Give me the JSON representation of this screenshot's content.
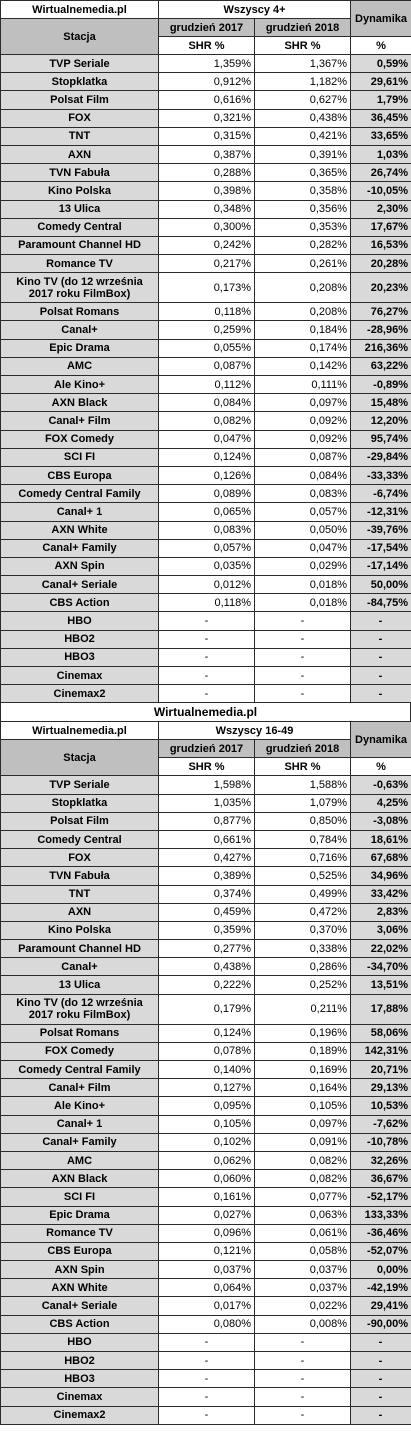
{
  "sections": [
    {
      "brand": "Wirtualnemedia.pl",
      "group": "Wszyscy 4+",
      "dynamics_label": "Dynamika",
      "station_label": "Stacja",
      "year1": "grudzień 2017",
      "year2": "grudzień 2018",
      "shr1": "SHR %",
      "shr2": "SHR %",
      "pct": "%",
      "rows": [
        {
          "name": "TVP Seriale",
          "v1": "1,359%",
          "v2": "1,367%",
          "dyn": "0,59%"
        },
        {
          "name": "Stopklatka",
          "v1": "0,912%",
          "v2": "1,182%",
          "dyn": "29,61%"
        },
        {
          "name": "Polsat Film",
          "v1": "0,616%",
          "v2": "0,627%",
          "dyn": "1,79%"
        },
        {
          "name": "FOX",
          "v1": "0,321%",
          "v2": "0,438%",
          "dyn": "36,45%"
        },
        {
          "name": "TNT",
          "v1": "0,315%",
          "v2": "0,421%",
          "dyn": "33,65%"
        },
        {
          "name": "AXN",
          "v1": "0,387%",
          "v2": "0,391%",
          "dyn": "1,03%"
        },
        {
          "name": "TVN Fabuła",
          "v1": "0,288%",
          "v2": "0,365%",
          "dyn": "26,74%"
        },
        {
          "name": "Kino Polska",
          "v1": "0,398%",
          "v2": "0,358%",
          "dyn": "-10,05%"
        },
        {
          "name": "13 Ulica",
          "v1": "0,348%",
          "v2": "0,356%",
          "dyn": "2,30%"
        },
        {
          "name": "Comedy Central",
          "v1": "0,300%",
          "v2": "0,353%",
          "dyn": "17,67%"
        },
        {
          "name": "Paramount Channel HD",
          "v1": "0,242%",
          "v2": "0,282%",
          "dyn": "16,53%"
        },
        {
          "name": "Romance TV",
          "v1": "0,217%",
          "v2": "0,261%",
          "dyn": "20,28%"
        },
        {
          "name": "Kino TV (do 12 września 2017 roku FilmBox)",
          "v1": "0,173%",
          "v2": "0,208%",
          "dyn": "20,23%",
          "tall": true
        },
        {
          "name": "Polsat Romans",
          "v1": "0,118%",
          "v2": "0,208%",
          "dyn": "76,27%"
        },
        {
          "name": "Canal+",
          "v1": "0,259%",
          "v2": "0,184%",
          "dyn": "-28,96%"
        },
        {
          "name": "Epic Drama",
          "v1": "0,055%",
          "v2": "0,174%",
          "dyn": "216,36%"
        },
        {
          "name": "AMC",
          "v1": "0,087%",
          "v2": "0,142%",
          "dyn": "63,22%"
        },
        {
          "name": "Ale Kino+",
          "v1": "0,112%",
          "v2": "0,111%",
          "dyn": "-0,89%"
        },
        {
          "name": "AXN Black",
          "v1": "0,084%",
          "v2": "0,097%",
          "dyn": "15,48%"
        },
        {
          "name": "Canal+ Film",
          "v1": "0,082%",
          "v2": "0,092%",
          "dyn": "12,20%"
        },
        {
          "name": "FOX Comedy",
          "v1": "0,047%",
          "v2": "0,092%",
          "dyn": "95,74%"
        },
        {
          "name": "SCI FI",
          "v1": "0,124%",
          "v2": "0,087%",
          "dyn": "-29,84%"
        },
        {
          "name": "CBS Europa",
          "v1": "0,126%",
          "v2": "0,084%",
          "dyn": "-33,33%"
        },
        {
          "name": "Comedy Central Family",
          "v1": "0,089%",
          "v2": "0,083%",
          "dyn": "-6,74%"
        },
        {
          "name": "Canal+ 1",
          "v1": "0,065%",
          "v2": "0,057%",
          "dyn": "-12,31%"
        },
        {
          "name": "AXN White",
          "v1": "0,083%",
          "v2": "0,050%",
          "dyn": "-39,76%"
        },
        {
          "name": "Canal+ Family",
          "v1": "0,057%",
          "v2": "0,047%",
          "dyn": "-17,54%"
        },
        {
          "name": "AXN Spin",
          "v1": "0,035%",
          "v2": "0,029%",
          "dyn": "-17,14%"
        },
        {
          "name": "Canal+ Seriale",
          "v1": "0,012%",
          "v2": "0,018%",
          "dyn": "50,00%"
        },
        {
          "name": "CBS Action",
          "v1": "0,118%",
          "v2": "0,018%",
          "dyn": "-84,75%"
        },
        {
          "name": "HBO",
          "v1": "-",
          "v2": "-",
          "dyn": "-"
        },
        {
          "name": "HBO2",
          "v1": "-",
          "v2": "-",
          "dyn": "-"
        },
        {
          "name": "HBO3",
          "v1": "-",
          "v2": "-",
          "dyn": "-"
        },
        {
          "name": "Cinemax",
          "v1": "-",
          "v2": "-",
          "dyn": "-"
        },
        {
          "name": "Cinemax2",
          "v1": "-",
          "v2": "-",
          "dyn": "-"
        }
      ]
    },
    {
      "brand": "Wirtualnemedia.pl",
      "group": "Wszyscy 16-49",
      "dynamics_label": "Dynamika",
      "station_label": "Stacja",
      "year1": "grudzień 2017",
      "year2": "grudzień 2018",
      "shr1": "SHR %",
      "shr2": "SHR %",
      "pct": "%",
      "rows": [
        {
          "name": "TVP Seriale",
          "v1": "1,598%",
          "v2": "1,588%",
          "dyn": "-0,63%"
        },
        {
          "name": "Stopklatka",
          "v1": "1,035%",
          "v2": "1,079%",
          "dyn": "4,25%"
        },
        {
          "name": "Polsat Film",
          "v1": "0,877%",
          "v2": "0,850%",
          "dyn": "-3,08%"
        },
        {
          "name": "Comedy Central",
          "v1": "0,661%",
          "v2": "0,784%",
          "dyn": "18,61%"
        },
        {
          "name": "FOX",
          "v1": "0,427%",
          "v2": "0,716%",
          "dyn": "67,68%"
        },
        {
          "name": "TVN Fabuła",
          "v1": "0,389%",
          "v2": "0,525%",
          "dyn": "34,96%"
        },
        {
          "name": "TNT",
          "v1": "0,374%",
          "v2": "0,499%",
          "dyn": "33,42%"
        },
        {
          "name": "AXN",
          "v1": "0,459%",
          "v2": "0,472%",
          "dyn": "2,83%"
        },
        {
          "name": "Kino Polska",
          "v1": "0,359%",
          "v2": "0,370%",
          "dyn": "3,06%"
        },
        {
          "name": "Paramount Channel HD",
          "v1": "0,277%",
          "v2": "0,338%",
          "dyn": "22,02%"
        },
        {
          "name": "Canal+",
          "v1": "0,438%",
          "v2": "0,286%",
          "dyn": "-34,70%"
        },
        {
          "name": "13 Ulica",
          "v1": "0,222%",
          "v2": "0,252%",
          "dyn": "13,51%"
        },
        {
          "name": "Kino TV (do 12 września 2017 roku FilmBox)",
          "v1": "0,179%",
          "v2": "0,211%",
          "dyn": "17,88%",
          "tall": true
        },
        {
          "name": "Polsat Romans",
          "v1": "0,124%",
          "v2": "0,196%",
          "dyn": "58,06%"
        },
        {
          "name": "FOX Comedy",
          "v1": "0,078%",
          "v2": "0,189%",
          "dyn": "142,31%"
        },
        {
          "name": "Comedy Central Family",
          "v1": "0,140%",
          "v2": "0,169%",
          "dyn": "20,71%"
        },
        {
          "name": "Canal+ Film",
          "v1": "0,127%",
          "v2": "0,164%",
          "dyn": "29,13%"
        },
        {
          "name": "Ale Kino+",
          "v1": "0,095%",
          "v2": "0,105%",
          "dyn": "10,53%"
        },
        {
          "name": "Canal+ 1",
          "v1": "0,105%",
          "v2": "0,097%",
          "dyn": "-7,62%"
        },
        {
          "name": "Canal+ Family",
          "v1": "0,102%",
          "v2": "0,091%",
          "dyn": "-10,78%"
        },
        {
          "name": "AMC",
          "v1": "0,062%",
          "v2": "0,082%",
          "dyn": "32,26%"
        },
        {
          "name": "AXN Black",
          "v1": "0,060%",
          "v2": "0,082%",
          "dyn": "36,67%"
        },
        {
          "name": "SCI FI",
          "v1": "0,161%",
          "v2": "0,077%",
          "dyn": "-52,17%"
        },
        {
          "name": "Epic Drama",
          "v1": "0,027%",
          "v2": "0,063%",
          "dyn": "133,33%"
        },
        {
          "name": "Romance TV",
          "v1": "0,096%",
          "v2": "0,061%",
          "dyn": "-36,46%"
        },
        {
          "name": "CBS Europa",
          "v1": "0,121%",
          "v2": "0,058%",
          "dyn": "-52,07%"
        },
        {
          "name": "AXN Spin",
          "v1": "0,037%",
          "v2": "0,037%",
          "dyn": "0,00%"
        },
        {
          "name": "AXN White",
          "v1": "0,064%",
          "v2": "0,037%",
          "dyn": "-42,19%"
        },
        {
          "name": "Canal+ Seriale",
          "v1": "0,017%",
          "v2": "0,022%",
          "dyn": "29,41%"
        },
        {
          "name": "CBS Action",
          "v1": "0,080%",
          "v2": "0,008%",
          "dyn": "-90,00%"
        },
        {
          "name": "HBO",
          "v1": "-",
          "v2": "-",
          "dyn": "-"
        },
        {
          "name": "HBO2",
          "v1": "-",
          "v2": "-",
          "dyn": "-"
        },
        {
          "name": "HBO3",
          "v1": "-",
          "v2": "-",
          "dyn": "-"
        },
        {
          "name": "Cinemax",
          "v1": "-",
          "v2": "-",
          "dyn": "-"
        },
        {
          "name": "Cinemax2",
          "v1": "-",
          "v2": "-",
          "dyn": "-"
        }
      ]
    }
  ],
  "middle_caption": "Wirtualnemedia.pl"
}
